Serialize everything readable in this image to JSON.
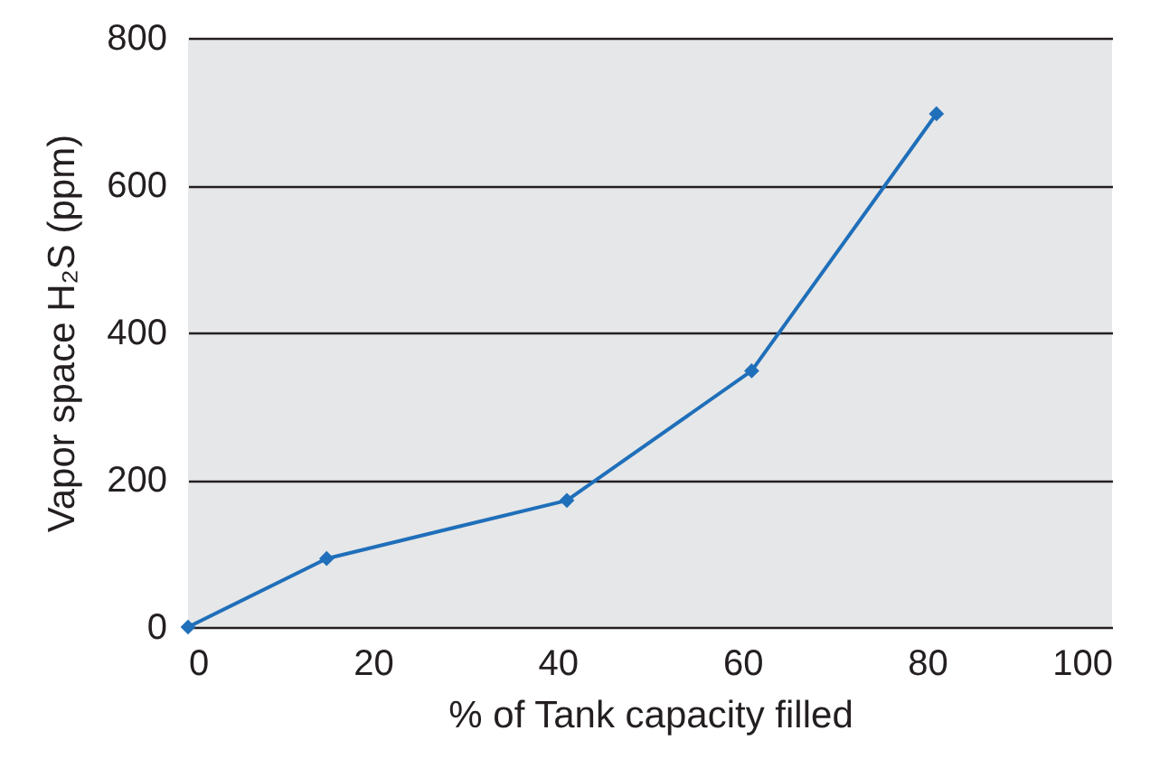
{
  "chart_data": {
    "type": "line",
    "xlabel": "% of Tank capacity filled",
    "ylabel": "Vapor space H₂S (ppm)",
    "x": [
      0,
      15,
      41,
      61,
      81
    ],
    "series": [
      {
        "color": "#1f6fba",
        "values": [
          0,
          93,
          172,
          348,
          697
        ]
      }
    ],
    "xlim": [
      0,
      100
    ],
    "xticks": [
      0,
      20,
      40,
      60,
      80,
      100
    ],
    "ylim": [
      0,
      800
    ],
    "yticks": [
      0,
      200,
      400,
      600,
      800
    ],
    "grid": "y",
    "marker": "diamond",
    "line_style": "solid"
  }
}
